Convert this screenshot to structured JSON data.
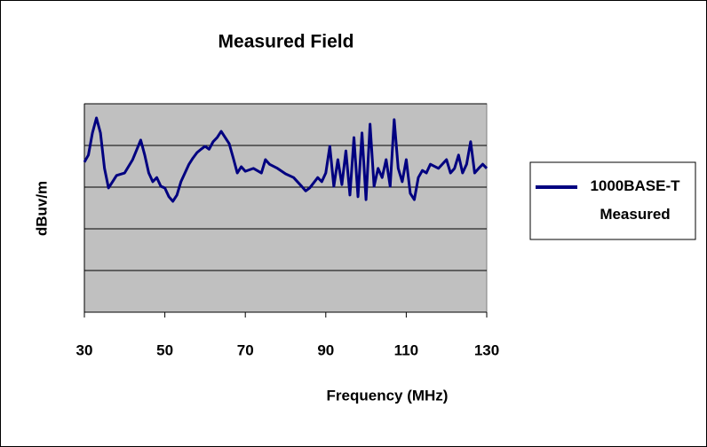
{
  "chart_data": {
    "type": "line",
    "title": "Measured Field",
    "x_label": "Frequency (MHz)",
    "y_label": "dBuv/m",
    "xlim": [
      30,
      130
    ],
    "xticks": [
      30,
      50,
      70,
      90,
      110,
      130
    ],
    "ylim": [
      0,
      50
    ],
    "yticks": [
      0,
      10,
      20,
      30,
      40,
      50
    ],
    "ytick_labels": false,
    "grid": true,
    "legend": "right",
    "series": [
      {
        "name": "1000BASE-T Measured",
        "color": "#000080",
        "x": [
          30,
          31,
          32,
          33,
          34,
          35,
          36,
          37,
          38,
          40,
          42,
          44,
          45,
          46,
          47,
          48,
          49,
          50,
          51,
          52,
          53,
          54,
          55,
          56,
          57,
          58,
          59,
          60,
          61,
          62,
          63,
          64,
          65,
          66,
          67,
          68,
          69,
          70,
          72,
          74,
          75,
          76,
          78,
          80,
          82,
          84,
          85,
          86,
          88,
          89,
          90,
          91,
          92,
          93,
          94,
          95,
          96,
          97,
          98,
          99,
          100,
          101,
          102,
          103,
          104,
          105,
          106,
          107,
          108,
          109,
          110,
          111,
          112,
          113,
          114,
          115,
          116,
          118,
          120,
          121,
          122,
          123,
          124,
          125,
          126,
          127,
          128,
          129,
          130
        ],
        "values": [
          36.0,
          37.7,
          43.0,
          46.6,
          43.0,
          34.5,
          29.8,
          31.3,
          32.8,
          33.4,
          36.6,
          41.3,
          37.7,
          33.4,
          31.3,
          32.3,
          30.2,
          29.8,
          27.7,
          26.6,
          28.1,
          31.3,
          33.4,
          35.5,
          37.0,
          38.3,
          39.1,
          39.8,
          39.1,
          40.9,
          41.9,
          43.4,
          41.9,
          40.4,
          37.0,
          33.4,
          34.9,
          33.8,
          34.5,
          33.4,
          36.6,
          35.5,
          34.5,
          33.2,
          32.3,
          30.2,
          29.1,
          29.8,
          32.3,
          31.3,
          33.4,
          39.8,
          30.2,
          36.6,
          30.6,
          38.7,
          28.1,
          41.9,
          27.7,
          43.0,
          27.0,
          45.1,
          30.2,
          34.5,
          32.3,
          36.6,
          30.2,
          46.2,
          34.5,
          31.3,
          36.6,
          28.5,
          27.0,
          32.3,
          34.0,
          33.4,
          35.5,
          34.5,
          36.6,
          33.4,
          34.5,
          37.7,
          33.4,
          35.5,
          40.9,
          33.4,
          34.5,
          35.5,
          34.5
        ]
      }
    ]
  }
}
